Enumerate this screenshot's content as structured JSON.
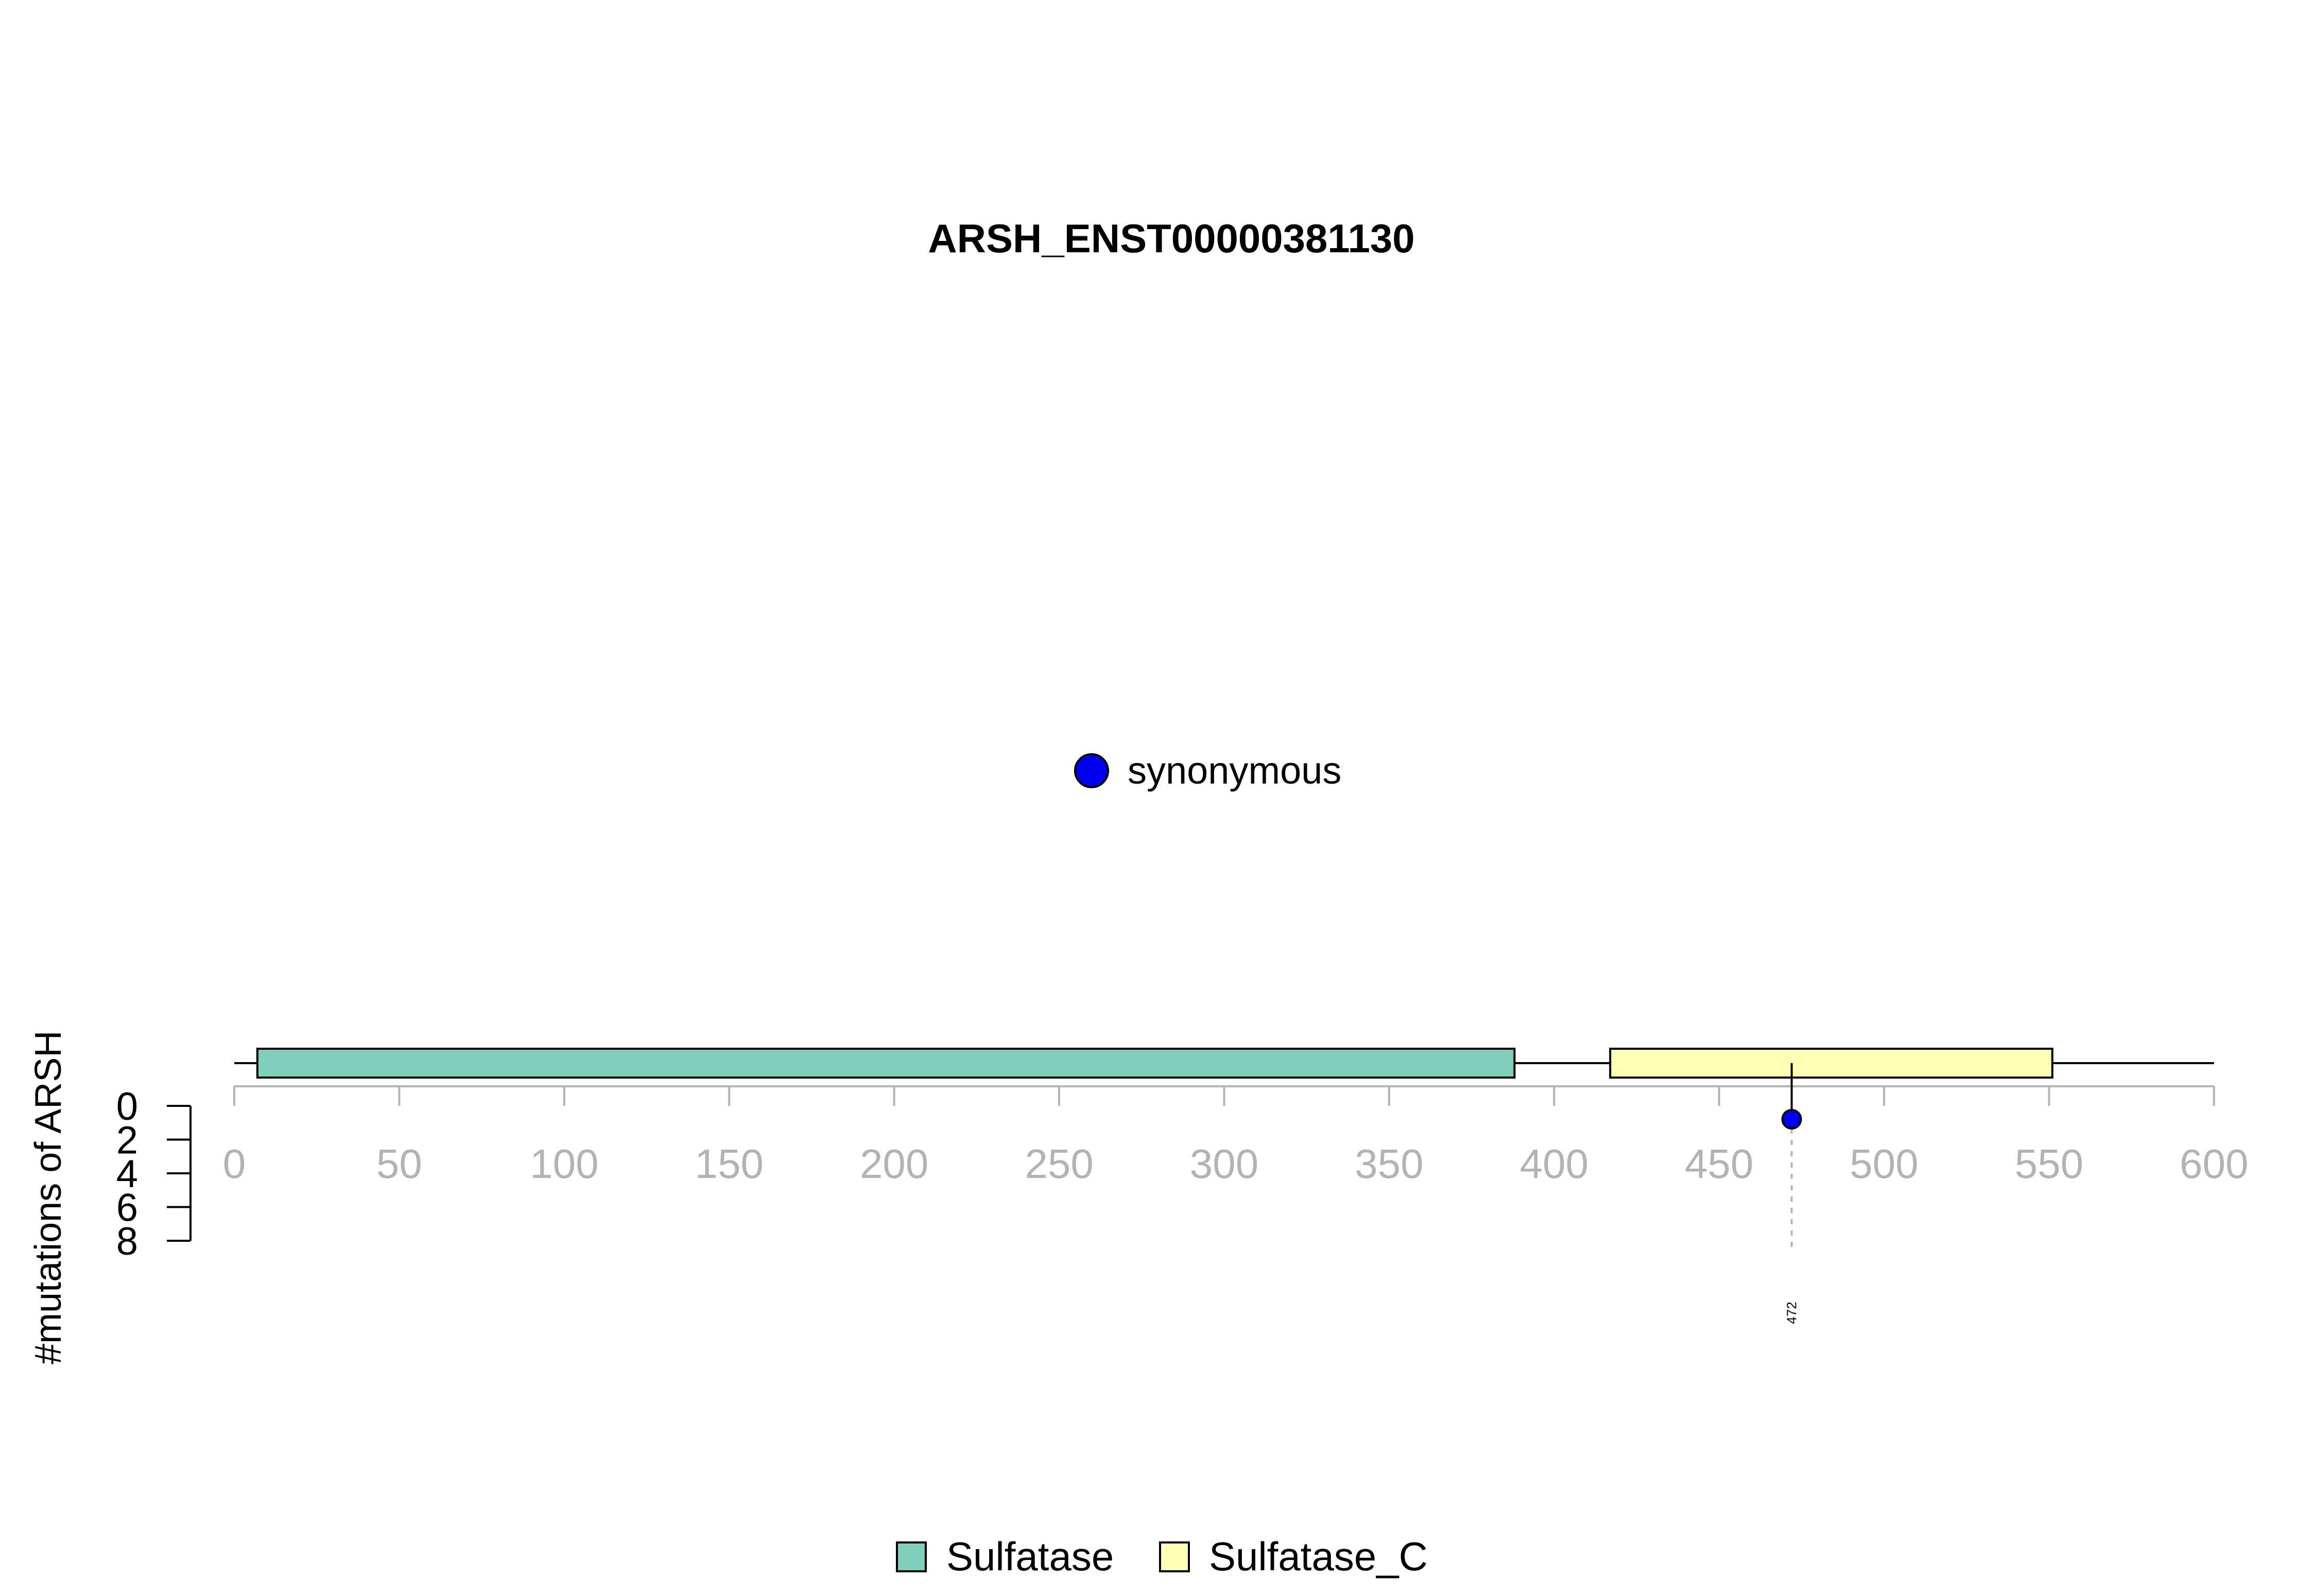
{
  "chart_data": {
    "type": "lollipop",
    "title": "ARSH_ENST00000381130",
    "ylabel": "#mutations of ARSH",
    "x_axis": {
      "range": [
        0,
        600
      ],
      "ticks": [
        0,
        50,
        100,
        150,
        200,
        250,
        300,
        350,
        400,
        450,
        500,
        550,
        600
      ]
    },
    "y_axis": {
      "range": [
        0,
        8
      ],
      "ticks": [
        0,
        2,
        4,
        6,
        8
      ]
    },
    "protein_length": 600,
    "domains": [
      {
        "name": "Sulfatase",
        "start": 7,
        "end": 388,
        "color": "#7fcdbb"
      },
      {
        "name": "Sulfatase_C",
        "start": 417,
        "end": 551,
        "color": "#ffffb3"
      }
    ],
    "mutations": [
      {
        "position": 472,
        "count": 1,
        "type": "synonymous",
        "label": "472",
        "color": "#0000ee"
      }
    ],
    "mutation_legend": [
      {
        "label": "synonymous",
        "color": "#0000ee"
      }
    ],
    "domain_legend": [
      {
        "label": "Sulfatase",
        "color": "#7fcdbb"
      },
      {
        "label": "Sulfatase_C",
        "color": "#ffffb3"
      }
    ],
    "grid": false
  }
}
